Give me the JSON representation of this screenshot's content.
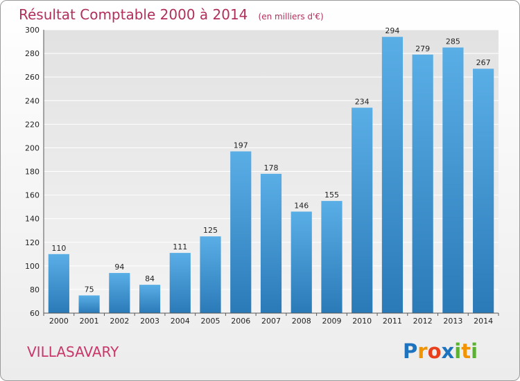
{
  "chart_data": {
    "type": "bar",
    "title": "Résultat Comptable 2000 à 2014",
    "subtitle": "(en milliers d'€)",
    "categories": [
      "2000",
      "2001",
      "2002",
      "2003",
      "2004",
      "2005",
      "2006",
      "2007",
      "2008",
      "2009",
      "2010",
      "2011",
      "2012",
      "2013",
      "2014"
    ],
    "values": [
      110,
      75,
      94,
      84,
      111,
      125,
      197,
      178,
      146,
      155,
      234,
      294,
      279,
      285,
      267
    ],
    "ylim": [
      60,
      300
    ],
    "yticks": [
      60,
      80,
      100,
      120,
      140,
      160,
      180,
      200,
      220,
      240,
      260,
      280,
      300
    ],
    "grid": true,
    "legend": "none",
    "bar_color_top": "#5aaee6",
    "bar_color_bottom": "#2a7ab8"
  },
  "place_name": "VILLASAVARY",
  "logo": {
    "text": "Proxiti",
    "letters": [
      "P",
      "r",
      "o",
      "x",
      "i",
      "t",
      "i"
    ],
    "colors": [
      "#1e73be",
      "#f29400",
      "#e8401c",
      "#1e73be",
      "#5bb131",
      "#f29400",
      "#5bb131"
    ]
  }
}
